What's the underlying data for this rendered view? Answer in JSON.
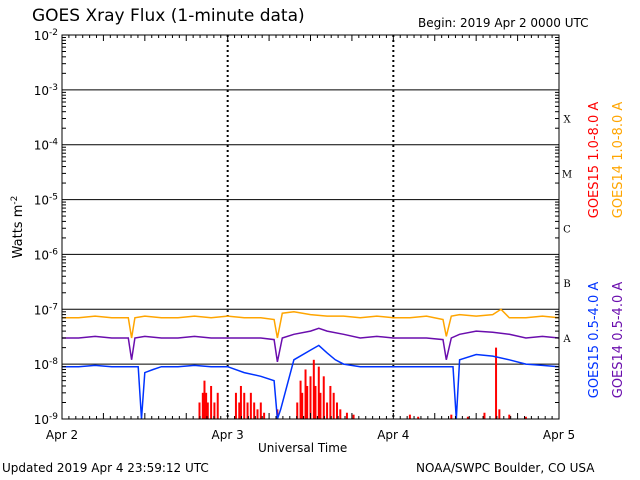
{
  "header": {
    "title": "GOES Xray Flux (1-minute data)",
    "begin": "Begin:  2019 Apr 2 0000 UTC"
  },
  "footer": {
    "updated": "Updated 2019 Apr  4 23:59:12 UTC",
    "credit": "NOAA/SWPC Boulder, CO USA"
  },
  "chart_data": {
    "type": "line",
    "ylabel_base": "Watts m",
    "ylabel_exp": "-2",
    "xlabel": "Universal Time",
    "y_scale": "log",
    "ylim": [
      1e-09,
      0.01
    ],
    "xlim": [
      0,
      3
    ],
    "grid": true,
    "y_ticks": [
      {
        "base": "10",
        "exp": "-2",
        "value": 0.01
      },
      {
        "base": "10",
        "exp": "-3",
        "value": 0.001
      },
      {
        "base": "10",
        "exp": "-4",
        "value": 0.0001
      },
      {
        "base": "10",
        "exp": "-5",
        "value": 1e-05
      },
      {
        "base": "10",
        "exp": "-6",
        "value": 1e-06
      },
      {
        "base": "10",
        "exp": "-7",
        "value": 1e-07
      },
      {
        "base": "10",
        "exp": "-8",
        "value": 1e-08
      },
      {
        "base": "10",
        "exp": "-9",
        "value": 1e-09
      }
    ],
    "x_ticks": [
      {
        "label": "Apr 2",
        "value": 0
      },
      {
        "label": "Apr 3",
        "value": 1
      },
      {
        "label": "Apr 4",
        "value": 2
      },
      {
        "label": "Apr 5",
        "value": 3
      }
    ],
    "flare_classes": [
      {
        "label": "X",
        "value": 0.0003
      },
      {
        "label": "M",
        "value": 3e-05
      },
      {
        "label": "C",
        "value": 3e-06
      },
      {
        "label": "B",
        "value": 3e-07
      },
      {
        "label": "A",
        "value": 3e-08
      }
    ],
    "series": [
      {
        "name": "GOES15 1.0-8.0 A",
        "color": "#ff0000",
        "style": "spikes",
        "x": [
          0.83,
          0.85,
          0.86,
          0.87,
          0.88,
          0.9,
          0.92,
          0.94,
          1.05,
          1.07,
          1.08,
          1.1,
          1.12,
          1.14,
          1.16,
          1.18,
          1.2,
          1.22,
          1.3,
          1.42,
          1.44,
          1.45,
          1.47,
          1.48,
          1.5,
          1.52,
          1.53,
          1.55,
          1.56,
          1.58,
          1.6,
          1.62,
          1.64,
          1.66,
          1.68,
          1.72,
          1.76,
          2.1,
          2.15,
          2.35,
          2.45,
          2.55,
          2.62,
          2.64,
          2.7,
          2.8
        ],
        "values": [
          2e-09,
          3e-09,
          5e-09,
          3e-09,
          2e-09,
          4e-09,
          2e-09,
          3e-09,
          3e-09,
          2e-09,
          4e-09,
          3e-09,
          2e-09,
          3e-09,
          2e-09,
          1.5e-09,
          2e-09,
          1.3e-09,
          1.5e-09,
          2e-09,
          5e-09,
          3e-09,
          8e-09,
          4e-09,
          6e-09,
          1.2e-08,
          4e-09,
          9e-09,
          3e-09,
          6e-09,
          2e-09,
          4e-09,
          3e-09,
          2e-09,
          1.5e-09,
          1.3e-09,
          1.2e-09,
          1.2e-09,
          1.1e-09,
          1.2e-09,
          1.1e-09,
          1.3e-09,
          2e-08,
          1.5e-09,
          1.2e-09,
          1.1e-09
        ]
      },
      {
        "name": "GOES14 1.0-8.0 A",
        "color": "#ffa500",
        "x": [
          0,
          0.1,
          0.2,
          0.3,
          0.4,
          0.42,
          0.44,
          0.5,
          0.6,
          0.7,
          0.8,
          0.9,
          1.0,
          1.1,
          1.2,
          1.28,
          1.3,
          1.33,
          1.4,
          1.5,
          1.6,
          1.7,
          1.8,
          1.9,
          2.0,
          2.1,
          2.2,
          2.3,
          2.32,
          2.35,
          2.4,
          2.5,
          2.6,
          2.65,
          2.7,
          2.8,
          2.9,
          3.0
        ],
        "values": [
          7e-08,
          7e-08,
          7.5e-08,
          7e-08,
          7e-08,
          3e-08,
          7e-08,
          7.5e-08,
          7e-08,
          7e-08,
          7.5e-08,
          7e-08,
          7.5e-08,
          7e-08,
          7e-08,
          6.5e-08,
          3e-08,
          8.5e-08,
          9e-08,
          8e-08,
          7.5e-08,
          7.5e-08,
          7e-08,
          7.5e-08,
          7e-08,
          7e-08,
          7.5e-08,
          6.5e-08,
          3.2e-08,
          7.5e-08,
          8e-08,
          7.5e-08,
          8e-08,
          1e-07,
          7e-08,
          7e-08,
          7.5e-08,
          7e-08
        ]
      },
      {
        "name": "GOES14 0.5-4.0 A",
        "color": "#6a0dad",
        "x": [
          0,
          0.1,
          0.2,
          0.3,
          0.4,
          0.42,
          0.44,
          0.5,
          0.6,
          0.7,
          0.8,
          0.9,
          1.0,
          1.1,
          1.2,
          1.28,
          1.3,
          1.33,
          1.4,
          1.5,
          1.55,
          1.6,
          1.7,
          1.8,
          1.9,
          2.0,
          2.1,
          2.2,
          2.3,
          2.32,
          2.35,
          2.4,
          2.5,
          2.6,
          2.7,
          2.8,
          2.9,
          3.0
        ],
        "values": [
          3e-08,
          3e-08,
          3.2e-08,
          3e-08,
          3e-08,
          1.2e-08,
          3e-08,
          3.2e-08,
          3e-08,
          3e-08,
          3.2e-08,
          3e-08,
          3e-08,
          3e-08,
          3e-08,
          2.8e-08,
          1.1e-08,
          3e-08,
          3.5e-08,
          4e-08,
          4.5e-08,
          4e-08,
          3.5e-08,
          3e-08,
          3.2e-08,
          3e-08,
          3e-08,
          3e-08,
          2.8e-08,
          1.2e-08,
          3e-08,
          3.5e-08,
          4e-08,
          3.8e-08,
          3.5e-08,
          3e-08,
          3.2e-08,
          3e-08
        ]
      },
      {
        "name": "GOES15 0.5-4.0 A",
        "color": "#0033ff",
        "x": [
          0,
          0.1,
          0.2,
          0.3,
          0.4,
          0.46,
          0.48,
          0.5,
          0.55,
          0.6,
          0.7,
          0.8,
          0.9,
          1.0,
          1.1,
          1.2,
          1.28,
          1.3,
          1.32,
          1.4,
          1.5,
          1.55,
          1.6,
          1.65,
          1.7,
          1.8,
          1.9,
          2.0,
          2.1,
          2.2,
          2.3,
          2.36,
          2.38,
          2.4,
          2.5,
          2.6,
          2.7,
          2.8,
          2.9,
          3.0
        ],
        "values": [
          9e-09,
          9e-09,
          9.5e-09,
          9e-09,
          9e-09,
          9e-09,
          1e-09,
          7e-09,
          8e-09,
          9e-09,
          9e-09,
          9.5e-09,
          9e-09,
          9e-09,
          7e-09,
          6e-09,
          5e-09,
          1e-09,
          1.5e-09,
          1.2e-08,
          1.8e-08,
          2.2e-08,
          1.6e-08,
          1.2e-08,
          1e-08,
          9e-09,
          9e-09,
          9e-09,
          9e-09,
          9e-09,
          9e-09,
          9e-09,
          1e-09,
          1.2e-08,
          1.5e-08,
          1.4e-08,
          1.2e-08,
          1e-08,
          9.5e-09,
          9e-09
        ]
      }
    ]
  }
}
